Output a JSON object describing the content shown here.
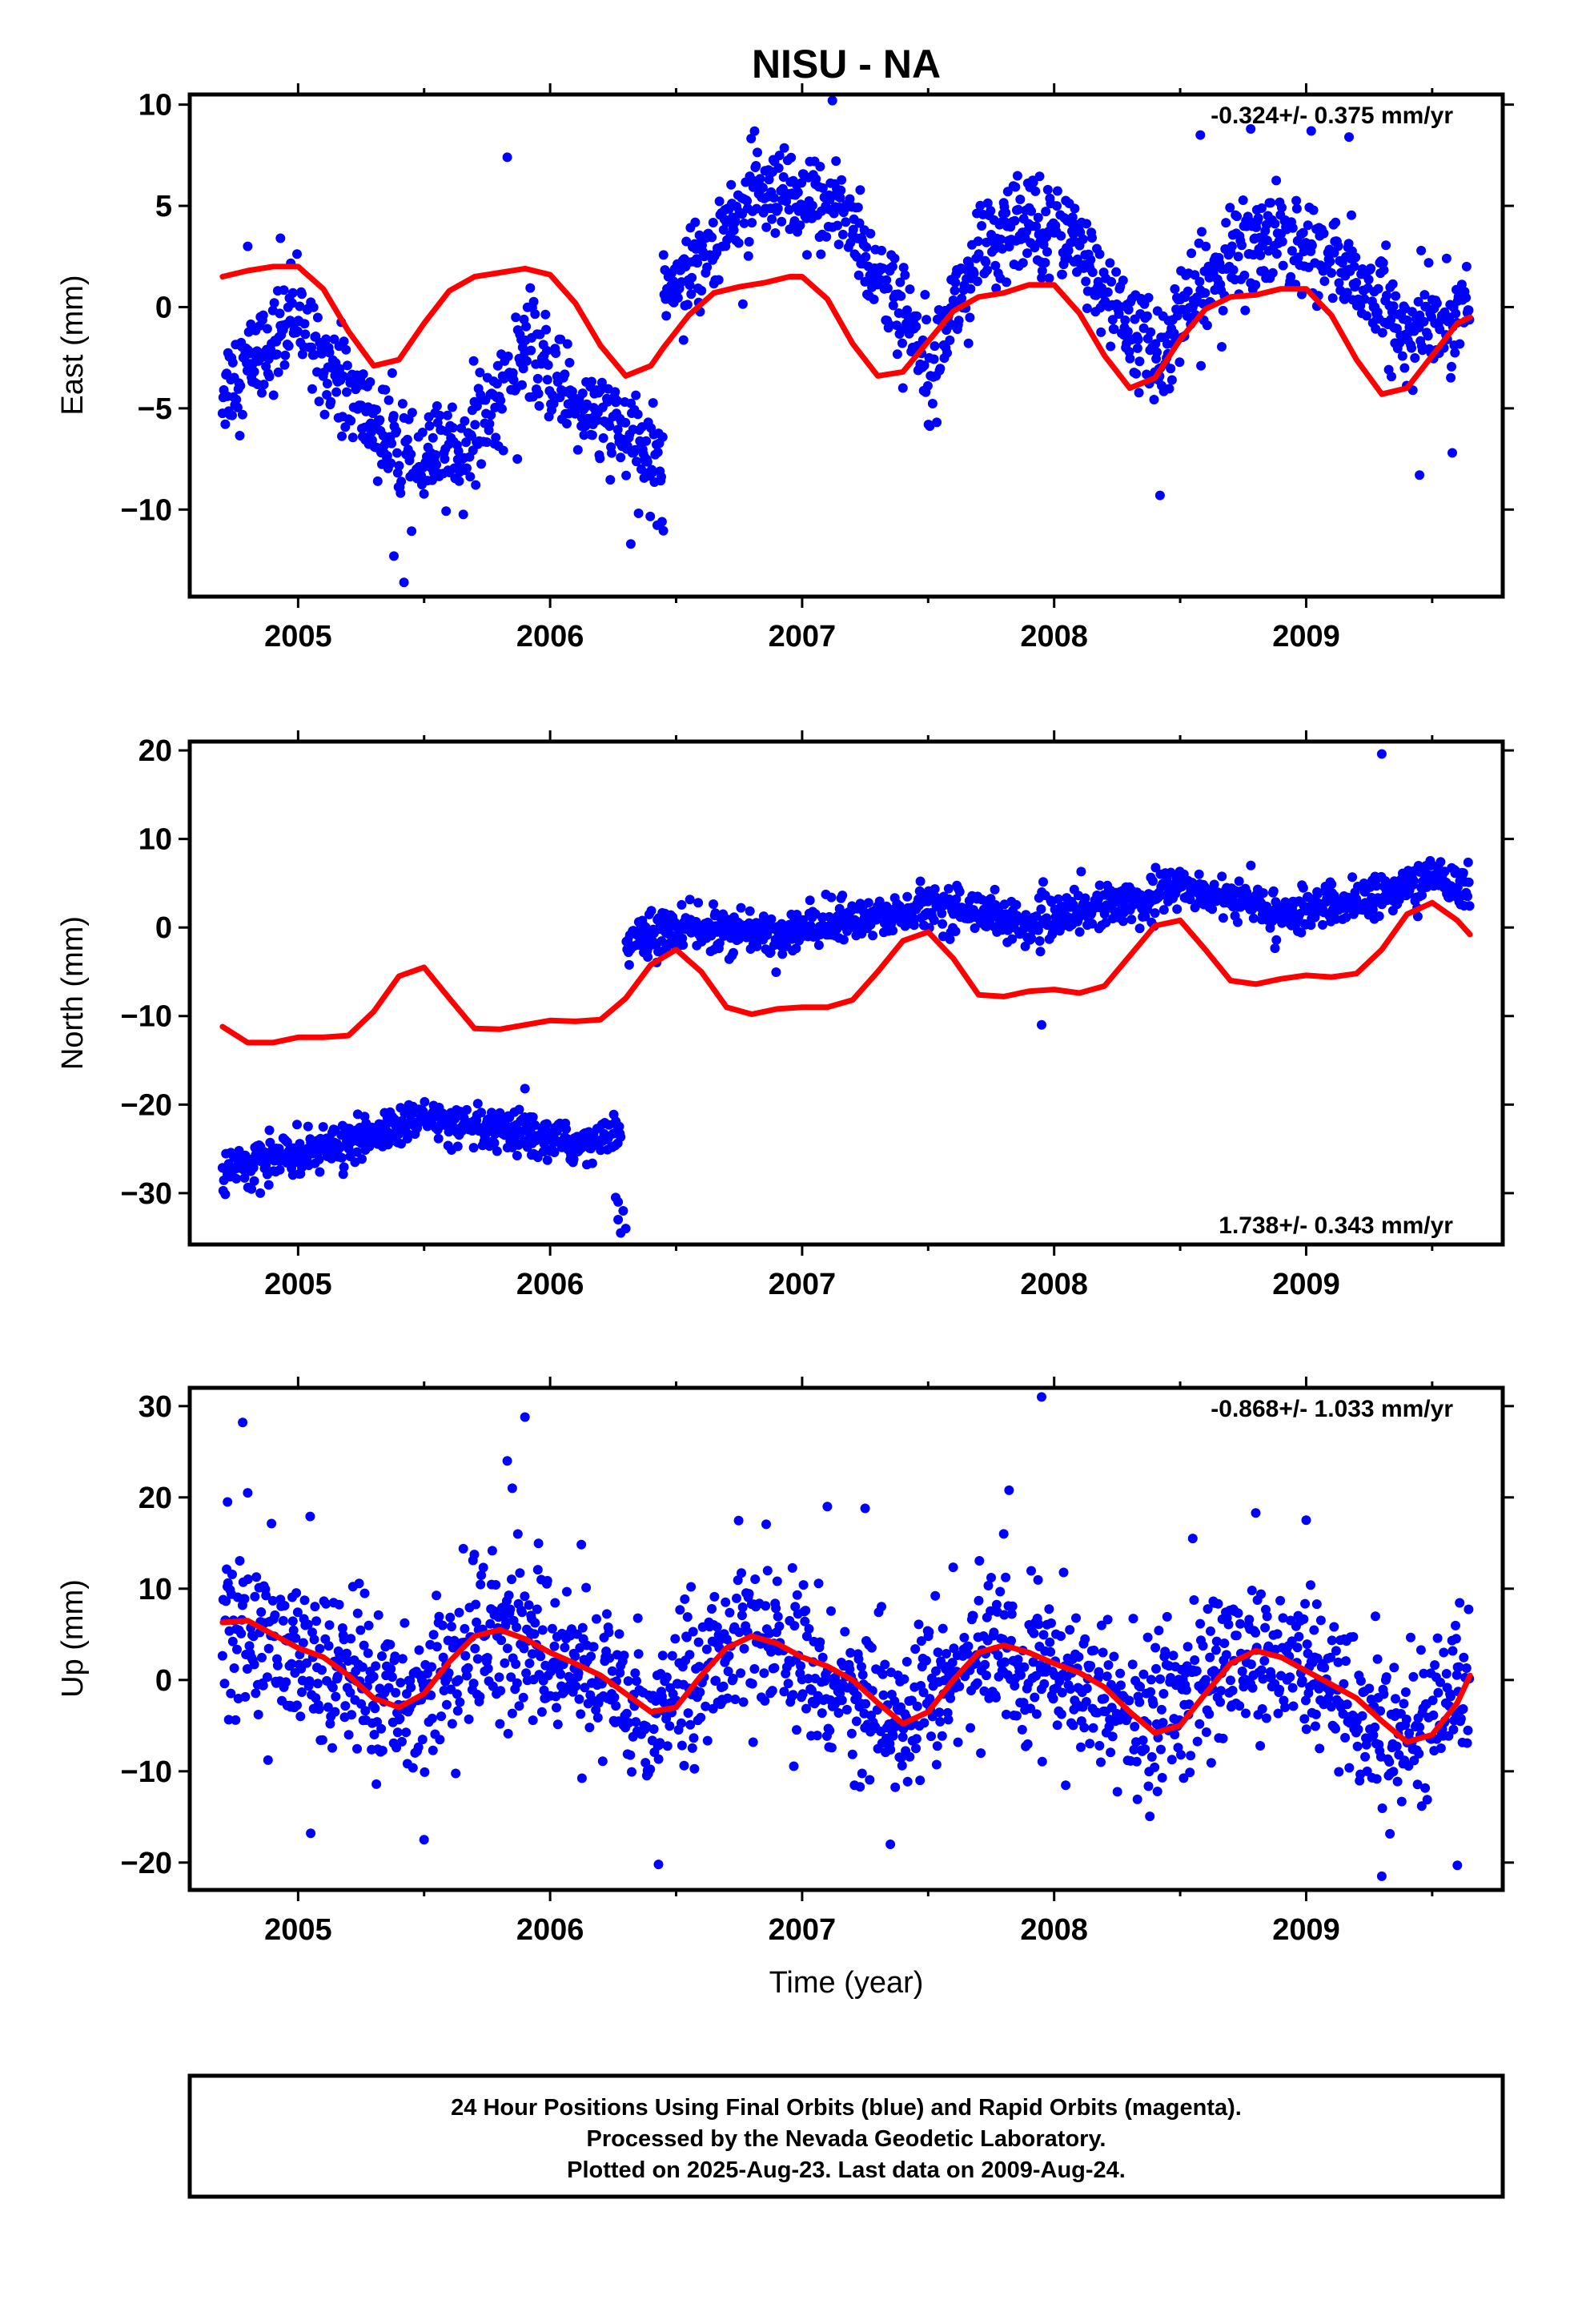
{
  "chart_data": [
    {
      "type": "scatter",
      "title": "NISU - NA",
      "xlabel": "",
      "ylabel": "East (mm)",
      "xlim": [
        2004.57,
        2009.78
      ],
      "ylim": [
        -14.3,
        10.5
      ],
      "xticks": [
        "2005",
        "2006",
        "2007",
        "2008",
        "2009"
      ],
      "yticks": [
        "10",
        "5",
        "0",
        "−5",
        "−10"
      ],
      "ytick_values": [
        10,
        5,
        0,
        -5,
        -10
      ],
      "rate": "-0.324+/- 0.375 mm/yr",
      "rate_position": "top-right",
      "grid": false,
      "series": [
        {
          "kind": "daily positions (blue)",
          "color": "#0000ff",
          "segments": [
            {
              "t": [
                2004.7,
                2005.0,
                2005.25,
                2005.45,
                2005.7,
                2005.9,
                2006.1,
                2006.3,
                2006.45
              ],
              "y": [
                -4.0,
                -0.5,
                -5.0,
                -8.0,
                -6.5,
                -2.0,
                -4.5,
                -6.5,
                -8.0
              ],
              "sd": 1.2
            },
            {
              "t": [
                2006.45,
                2006.6,
                2006.8,
                2007.0,
                2007.15,
                2007.3,
                2007.5,
                2007.7,
                2007.9,
                2008.05,
                2008.2,
                2008.4,
                2008.6,
                2008.8,
                2009.0,
                2009.2,
                2009.4,
                2009.6,
                2009.65
              ],
              "y": [
                1.0,
                2.5,
                5.5,
                4.8,
                5.2,
                1.5,
                -2.5,
                2.5,
                4.2,
                4.0,
                0.5,
                -2.5,
                1.0,
                3.5,
                3.0,
                1.5,
                -1.5,
                -0.5,
                1.0
              ],
              "sd": 1.2
            }
          ],
          "outliers": [
            [
              2005.83,
              7.4
            ],
            [
              2007.12,
              10.2
            ],
            [
              2008.58,
              8.5
            ],
            [
              2008.78,
              8.8
            ],
            [
              2009.02,
              8.7
            ],
            [
              2009.17,
              8.4
            ],
            [
              2005.42,
              -13.6
            ],
            [
              2005.38,
              -12.3
            ],
            [
              2006.32,
              -11.7
            ],
            [
              2008.42,
              -9.3
            ],
            [
              2009.45,
              -8.3
            ],
            [
              2009.58,
              -7.2
            ],
            [
              2004.8,
              3.0
            ],
            [
              2004.93,
              3.4
            ],
            [
              2005.87,
              -7.5
            ]
          ]
        },
        {
          "kind": "fitted model (red)",
          "color": "#ff0000",
          "x": [
            2004.7,
            2004.8,
            2004.9,
            2005.0,
            2005.1,
            2005.2,
            2005.3,
            2005.4,
            2005.5,
            2005.6,
            2005.7,
            2005.8,
            2005.9,
            2006.0,
            2006.1,
            2006.2,
            2006.3,
            2006.4,
            2006.45,
            2006.55,
            2006.65,
            2006.75,
            2006.85,
            2006.95,
            2007.0,
            2007.1,
            2007.2,
            2007.3,
            2007.4,
            2007.5,
            2007.6,
            2007.7,
            2007.8,
            2007.9,
            2008.0,
            2008.1,
            2008.2,
            2008.3,
            2008.4,
            2008.5,
            2008.6,
            2008.7,
            2008.8,
            2008.9,
            2009.0,
            2009.1,
            2009.2,
            2009.3,
            2009.4,
            2009.5,
            2009.6,
            2009.65
          ],
          "y": [
            1.5,
            1.8,
            2.0,
            2.0,
            0.9,
            -1.2,
            -2.9,
            -2.6,
            -0.8,
            0.8,
            1.5,
            1.7,
            1.9,
            1.6,
            0.2,
            -1.9,
            -3.4,
            -2.9,
            -2.0,
            -0.4,
            0.7,
            1.0,
            1.2,
            1.5,
            1.5,
            0.4,
            -1.8,
            -3.4,
            -3.2,
            -1.7,
            -0.2,
            0.5,
            0.7,
            1.1,
            1.1,
            -0.3,
            -2.4,
            -4.0,
            -3.5,
            -1.6,
            -0.1,
            0.5,
            0.6,
            0.9,
            0.9,
            -0.4,
            -2.6,
            -4.3,
            -4.0,
            -2.4,
            -0.8,
            -0.5
          ]
        }
      ]
    },
    {
      "type": "scatter",
      "title": "",
      "xlabel": "",
      "ylabel": "North (mm)",
      "xlim": [
        2004.57,
        2009.78
      ],
      "ylim": [
        -35.8,
        21.0
      ],
      "xticks": [
        "2005",
        "2006",
        "2007",
        "2008",
        "2009"
      ],
      "yticks": [
        "20",
        "10",
        "0",
        "−10",
        "−20",
        "−30"
      ],
      "ytick_values": [
        20,
        10,
        0,
        -10,
        -20,
        -30
      ],
      "rate": "1.738+/- 0.343 mm/yr",
      "rate_position": "bottom-right",
      "grid": false,
      "series": [
        {
          "kind": "daily positions (blue)",
          "color": "#0000ff",
          "segments": [
            {
              "t": [
                2004.7,
                2004.9,
                2005.1,
                2005.3,
                2005.5,
                2005.7,
                2005.9,
                2006.1,
                2006.28
              ],
              "y": [
                -27.5,
                -26.0,
                -25.0,
                -23.5,
                -21.5,
                -23.0,
                -23.5,
                -24.5,
                -23.0
              ],
              "sd": 1.1
            },
            {
              "t": [
                2006.3,
                2006.5,
                2006.7,
                2006.9,
                2007.1,
                2007.3,
                2007.5,
                2007.7,
                2007.9,
                2008.1,
                2008.3,
                2008.5,
                2008.7,
                2008.9,
                2009.1,
                2009.3,
                2009.5,
                2009.65
              ],
              "y": [
                -2.0,
                0.0,
                -0.5,
                -1.0,
                0.5,
                1.0,
                2.5,
                2.0,
                0.0,
                2.0,
                3.0,
                4.5,
                3.5,
                1.5,
                2.5,
                3.5,
                5.5,
                4.5
              ],
              "sd": 1.2
            }
          ],
          "outliers": [
            [
              2009.3,
              19.6
            ],
            [
              2007.95,
              -11.0
            ],
            [
              2006.27,
              -31.0
            ],
            [
              2006.27,
              -33.0
            ],
            [
              2006.28,
              -34.5
            ],
            [
              2006.29,
              -32.0
            ],
            [
              2006.26,
              -30.5
            ],
            [
              2006.3,
              -34.0
            ],
            [
              2004.85,
              -30.0
            ],
            [
              2005.9,
              -18.2
            ]
          ]
        },
        {
          "kind": "fitted model (red)",
          "color": "#ff0000",
          "x": [
            2004.7,
            2004.8,
            2004.9,
            2005.0,
            2005.1,
            2005.2,
            2005.3,
            2005.4,
            2005.5,
            2005.6,
            2005.7,
            2005.8,
            2005.9,
            2006.0,
            2006.1,
            2006.2,
            2006.3,
            2006.4,
            2006.5,
            2006.6,
            2006.7,
            2006.8,
            2006.9,
            2007.0,
            2007.1,
            2007.2,
            2007.3,
            2007.4,
            2007.5,
            2007.6,
            2007.7,
            2007.8,
            2007.9,
            2008.0,
            2008.1,
            2008.2,
            2008.3,
            2008.4,
            2008.5,
            2008.6,
            2008.7,
            2008.8,
            2008.9,
            2009.0,
            2009.1,
            2009.2,
            2009.3,
            2009.4,
            2009.5,
            2009.6,
            2009.65
          ],
          "y": [
            -11.2,
            -13.0,
            -13.0,
            -12.4,
            -12.4,
            -12.2,
            -9.5,
            -5.5,
            -4.5,
            -8.0,
            -11.4,
            -11.5,
            -11.0,
            -10.5,
            -10.6,
            -10.4,
            -8.0,
            -4.2,
            -2.5,
            -5.0,
            -9.0,
            -9.8,
            -9.2,
            -9.0,
            -9.0,
            -8.2,
            -5.0,
            -1.5,
            -0.5,
            -3.5,
            -7.6,
            -7.8,
            -7.2,
            -7.0,
            -7.4,
            -6.6,
            -3.2,
            0.2,
            0.8,
            -2.5,
            -6.0,
            -6.4,
            -5.8,
            -5.4,
            -5.6,
            -5.2,
            -2.5,
            1.5,
            2.8,
            0.8,
            -0.8
          ]
        }
      ]
    },
    {
      "type": "scatter",
      "title": "",
      "xlabel": "Time (year)",
      "ylabel": "Up (mm)",
      "xlim": [
        2004.57,
        2009.78
      ],
      "ylim": [
        -23.0,
        32.0
      ],
      "xticks": [
        "2005",
        "2006",
        "2007",
        "2008",
        "2009"
      ],
      "yticks": [
        "30",
        "20",
        "10",
        "0",
        "−10",
        "−20"
      ],
      "ytick_values": [
        30,
        20,
        10,
        0,
        -10,
        -20
      ],
      "rate": "-0.868+/- 1.033 mm/yr",
      "rate_position": "top-right",
      "grid": false,
      "series": [
        {
          "kind": "daily positions (blue)",
          "color": "#0000ff",
          "segments": [
            {
              "t": [
                2004.7,
                2004.95,
                2005.2,
                2005.4,
                2005.6,
                2005.75,
                2005.95,
                2006.15,
                2006.4,
                2006.6,
                2006.75,
                2006.95,
                2007.15,
                2007.35,
                2007.55,
                2007.75,
                2007.95,
                2008.15,
                2008.35,
                2008.55,
                2008.75,
                2008.95,
                2009.15,
                2009.35,
                2009.55,
                2009.65
              ],
              "y": [
                6.5,
                3.0,
                0.5,
                -3.0,
                1.0,
                5.5,
                4.0,
                0.5,
                -3.5,
                1.5,
                5.0,
                2.5,
                0.0,
                -4.5,
                -0.5,
                3.5,
                1.5,
                -1.5,
                -5.5,
                -1.0,
                3.0,
                1.0,
                -2.0,
                -6.5,
                -3.0,
                0.5
              ],
              "sd": 4.2
            }
          ],
          "outliers": [
            [
              2004.78,
              28.2
            ],
            [
              2005.9,
              28.8
            ],
            [
              2005.83,
              24.0
            ],
            [
              2007.95,
              31.0
            ],
            [
              2004.72,
              19.5
            ],
            [
              2004.8,
              20.5
            ],
            [
              2005.05,
              -16.8
            ],
            [
              2005.5,
              -17.5
            ],
            [
              2006.43,
              -20.2
            ],
            [
              2007.35,
              -18.0
            ],
            [
              2009.3,
              -21.5
            ],
            [
              2009.6,
              -20.3
            ],
            [
              2007.1,
              19.0
            ],
            [
              2007.25,
              18.8
            ],
            [
              2008.8,
              18.3
            ],
            [
              2009.0,
              17.5
            ],
            [
              2005.85,
              21.0
            ],
            [
              2007.8,
              16.0
            ],
            [
              2008.55,
              15.5
            ]
          ]
        },
        {
          "kind": "fitted model (red)",
          "color": "#ff0000",
          "x": [
            2004.7,
            2004.8,
            2004.9,
            2005.0,
            2005.1,
            2005.2,
            2005.3,
            2005.4,
            2005.5,
            2005.6,
            2005.7,
            2005.8,
            2005.9,
            2006.0,
            2006.1,
            2006.2,
            2006.3,
            2006.4,
            2006.5,
            2006.6,
            2006.7,
            2006.8,
            2006.9,
            2007.0,
            2007.1,
            2007.2,
            2007.3,
            2007.4,
            2007.5,
            2007.6,
            2007.7,
            2007.8,
            2007.9,
            2008.0,
            2008.1,
            2008.2,
            2008.3,
            2008.4,
            2008.5,
            2008.6,
            2008.7,
            2008.8,
            2008.9,
            2009.0,
            2009.1,
            2009.2,
            2009.3,
            2009.4,
            2009.5,
            2009.6,
            2009.65
          ],
          "y": [
            6.3,
            6.5,
            5.0,
            3.5,
            2.5,
            0.5,
            -2.0,
            -3.0,
            -1.5,
            2.0,
            4.8,
            5.5,
            4.5,
            3.0,
            1.8,
            0.5,
            -1.5,
            -3.5,
            -3.0,
            0.5,
            3.5,
            4.8,
            4.0,
            2.5,
            1.5,
            0.0,
            -2.5,
            -4.8,
            -3.5,
            0.0,
            3.0,
            3.8,
            3.0,
            1.8,
            0.8,
            -0.8,
            -3.5,
            -5.8,
            -5.0,
            -1.5,
            1.8,
            3.2,
            2.5,
            1.0,
            -0.5,
            -2.0,
            -4.5,
            -6.8,
            -6.0,
            -2.5,
            0.5
          ]
        }
      ]
    }
  ],
  "footer": {
    "line1": "24 Hour Positions Using Final Orbits (blue) and Rapid Orbits (magenta).",
    "line2": "Processed by the Nevada Geodetic Laboratory.",
    "line3": "Plotted on 2025-Aug-23. Last data on 2009-Aug-24."
  }
}
